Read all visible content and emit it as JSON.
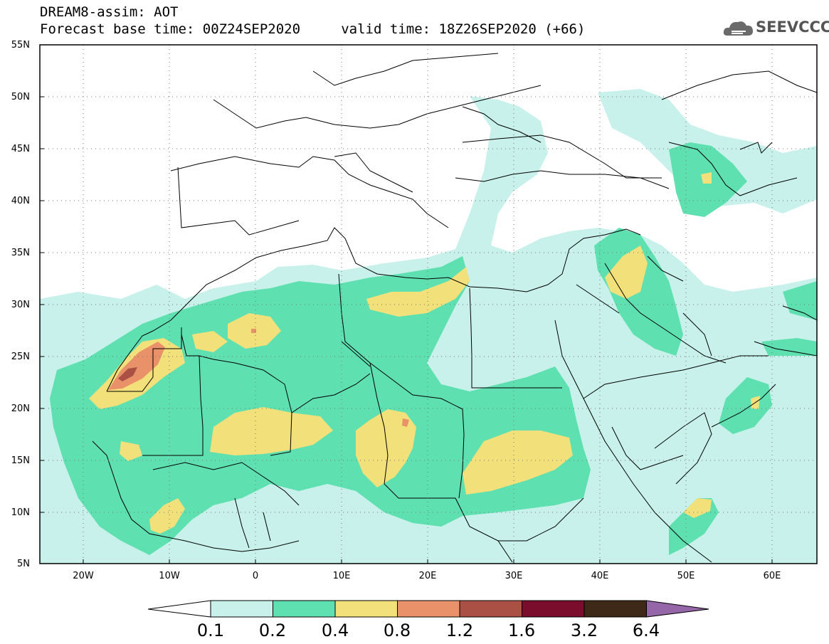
{
  "header": {
    "line1": "DREAM8-assim: AOT",
    "line2": "Forecast base time: 00Z24SEP2020     valid time: 18Z26SEP2020 (+66)"
  },
  "logo": {
    "text": "SEEVCCC",
    "icon": "cloud-icon"
  },
  "map": {
    "lat_labels": [
      "55N",
      "50N",
      "45N",
      "40N",
      "35N",
      "30N",
      "25N",
      "20N",
      "15N",
      "10N",
      "5N"
    ],
    "lon_labels": [
      "20W",
      "10W",
      "0",
      "10E",
      "20E",
      "30E",
      "40E",
      "50E",
      "60E"
    ],
    "extent": {
      "lon": [
        -25,
        65
      ],
      "lat": [
        5,
        55
      ]
    },
    "grid": "dotted"
  },
  "colorbar": {
    "colors": [
      "#c7f1ea",
      "#5fe0b0",
      "#f2e07a",
      "#e9926a",
      "#aa5044",
      "#7a0d2b",
      "#3e2818",
      "#9566a8"
    ],
    "labels": [
      "0.1",
      "0.2",
      "0.4",
      "0.8",
      "1.2",
      "1.6",
      "3.2",
      "6.4"
    ]
  }
}
